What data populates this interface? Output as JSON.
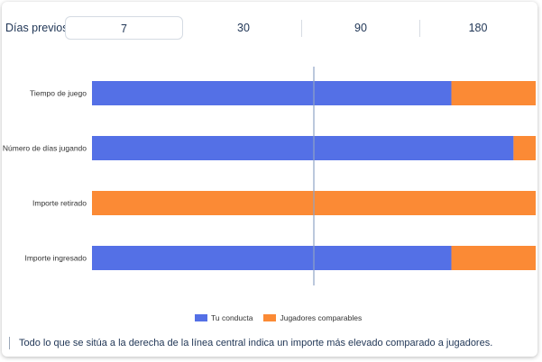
{
  "period_selector": {
    "label": "Días previos:",
    "options": [
      "7",
      "30",
      "90",
      "180"
    ],
    "selected": "7"
  },
  "colors": {
    "tu_conducta": "#5470e6",
    "jugadores_comparables": "#fb8a35",
    "center_line": "#8fa3c6"
  },
  "chart_data": {
    "type": "bar",
    "orientation": "horizontal",
    "stacked": true,
    "categories": [
      "Tiempo de juego",
      "Número de días jugando",
      "Importe retirado",
      "Importe ingresado"
    ],
    "series": [
      {
        "name": "Tu conducta",
        "values": [
          81,
          95,
          0,
          81
        ]
      },
      {
        "name": "Jugadores comparables",
        "values": [
          19,
          5,
          100,
          19
        ]
      }
    ],
    "xlim": [
      0,
      100
    ],
    "reference_line": 50,
    "legend_position": "bottom",
    "grid": false
  },
  "footnote": "Todo lo que se sitúa a la derecha de la línea central indica un importe más elevado comparado a jugadores."
}
